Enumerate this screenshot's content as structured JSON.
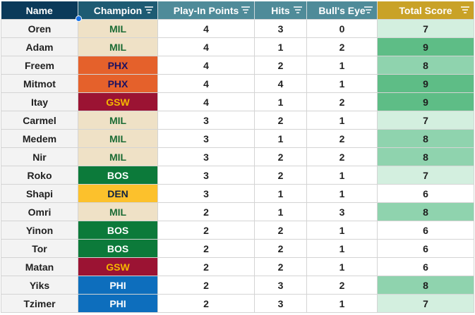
{
  "headers": [
    {
      "label": "Name",
      "bg": "#0b3a5a",
      "fg": "#ffffff",
      "filter": false
    },
    {
      "label": "Champion",
      "bg": "#1e5b73",
      "fg": "#ffffff",
      "filter": true
    },
    {
      "label": "Play-In Points",
      "bg": "#4f8b99",
      "fg": "#ffffff",
      "filter": true
    },
    {
      "label": "Hits",
      "bg": "#4f8b99",
      "fg": "#ffffff",
      "filter": true
    },
    {
      "label": "Bull's Eye",
      "bg": "#4f8b99",
      "fg": "#ffffff",
      "filter": true
    },
    {
      "label": "Total Score",
      "bg": "#c9a227",
      "fg": "#ffffff",
      "filter": true
    }
  ],
  "teams": {
    "MIL": {
      "bg": "#efe1c6",
      "fg": "#1b6b34"
    },
    "PHX": {
      "bg": "#e5612b",
      "fg": "#1d1160"
    },
    "GSW": {
      "bg": "#9b1333",
      "fg": "#f5b700"
    },
    "BOS": {
      "bg": "#0c7a3a",
      "fg": "#ffffff"
    },
    "DEN": {
      "bg": "#fcc12c",
      "fg": "#0e2240"
    },
    "PHI": {
      "bg": "#0d6ebd",
      "fg": "#ffffff"
    }
  },
  "scoreColors": {
    "6": "#ffffff",
    "7": "#d3efdf",
    "8": "#8fd3ae",
    "9": "#5ebd86"
  },
  "rows": [
    {
      "name": "Oren",
      "champion": "MIL",
      "playin": "4",
      "hits": "3",
      "bullseye": "0",
      "total": "7"
    },
    {
      "name": "Adam",
      "champion": "MIL",
      "playin": "4",
      "hits": "1",
      "bullseye": "2",
      "total": "9"
    },
    {
      "name": "Freem",
      "champion": "PHX",
      "playin": "4",
      "hits": "2",
      "bullseye": "1",
      "total": "8"
    },
    {
      "name": "Mitmot",
      "champion": "PHX",
      "playin": "4",
      "hits": "4",
      "bullseye": "1",
      "total": "9"
    },
    {
      "name": "Itay",
      "champion": "GSW",
      "playin": "4",
      "hits": "1",
      "bullseye": "2",
      "total": "9"
    },
    {
      "name": "Carmel",
      "champion": "MIL",
      "playin": "3",
      "hits": "2",
      "bullseye": "1",
      "total": "7"
    },
    {
      "name": "Medem",
      "champion": "MIL",
      "playin": "3",
      "hits": "1",
      "bullseye": "2",
      "total": "8"
    },
    {
      "name": "Nir",
      "champion": "MIL",
      "playin": "3",
      "hits": "2",
      "bullseye": "2",
      "total": "8"
    },
    {
      "name": "Roko",
      "champion": "BOS",
      "playin": "3",
      "hits": "2",
      "bullseye": "1",
      "total": "7"
    },
    {
      "name": "Shapi",
      "champion": "DEN",
      "playin": "3",
      "hits": "1",
      "bullseye": "1",
      "total": "6"
    },
    {
      "name": "Omri",
      "champion": "MIL",
      "playin": "2",
      "hits": "1",
      "bullseye": "3",
      "total": "8"
    },
    {
      "name": "Yinon",
      "champion": "BOS",
      "playin": "2",
      "hits": "2",
      "bullseye": "1",
      "total": "6"
    },
    {
      "name": "Tor",
      "champion": "BOS",
      "playin": "2",
      "hits": "2",
      "bullseye": "1",
      "total": "6"
    },
    {
      "name": "Matan",
      "champion": "GSW",
      "playin": "2",
      "hits": "2",
      "bullseye": "1",
      "total": "6"
    },
    {
      "name": "Yiks",
      "champion": "PHI",
      "playin": "2",
      "hits": "3",
      "bullseye": "2",
      "total": "8"
    },
    {
      "name": "Tzimer",
      "champion": "PHI",
      "playin": "2",
      "hits": "3",
      "bullseye": "1",
      "total": "7"
    }
  ]
}
